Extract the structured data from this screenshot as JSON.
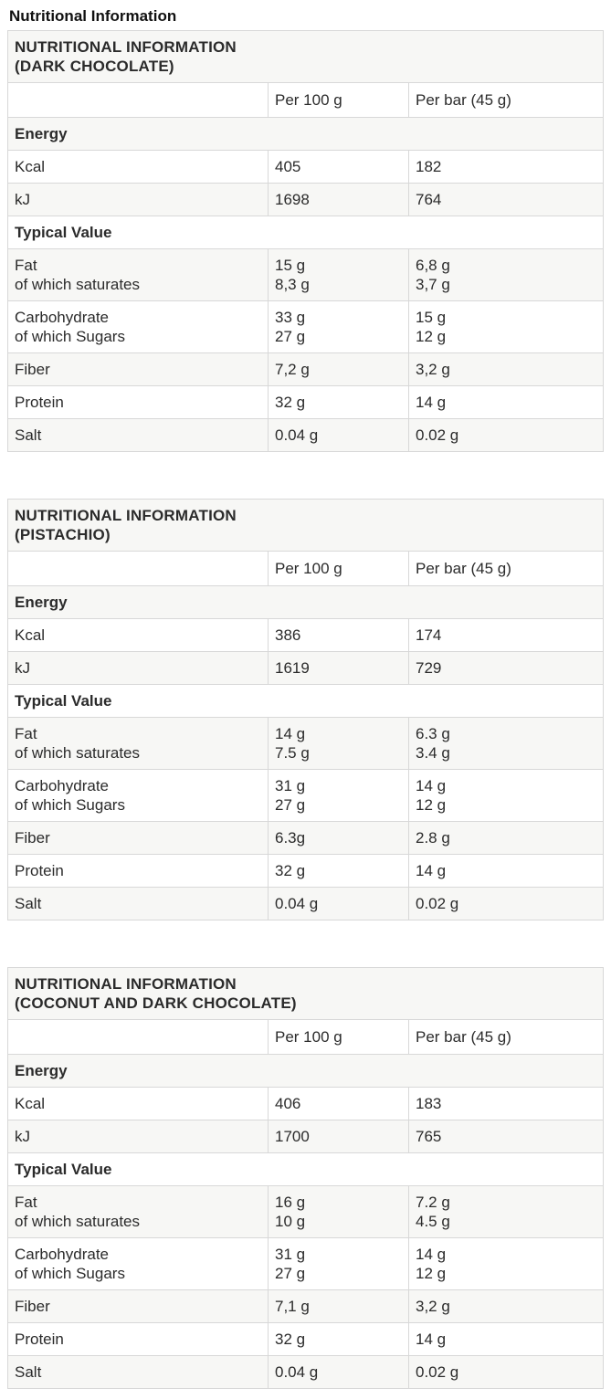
{
  "page_title": "Nutritional Information",
  "tables": [
    {
      "title_lines": [
        "NUTRITIONAL INFORMATION",
        "(DARK CHOCOLATE)"
      ],
      "columns": {
        "per_100g": "Per 100 g",
        "per_bar": "Per bar (45 g)"
      },
      "rows": [
        {
          "type": "section",
          "label": "Energy"
        },
        {
          "type": "data",
          "label": "Kcal",
          "per_100g": "405",
          "per_bar": "182"
        },
        {
          "type": "data",
          "label": "kJ",
          "per_100g": "1698",
          "per_bar": "764"
        },
        {
          "type": "section",
          "label": "Typical Value"
        },
        {
          "type": "data",
          "label": [
            "Fat",
            "of which saturates"
          ],
          "per_100g": [
            "15 g",
            "8,3 g"
          ],
          "per_bar": [
            "6,8 g",
            "3,7 g"
          ]
        },
        {
          "type": "data",
          "label": [
            "Carbohydrate",
            "of which Sugars"
          ],
          "per_100g": [
            "33 g",
            "27 g"
          ],
          "per_bar": [
            "15 g",
            "12 g"
          ]
        },
        {
          "type": "data",
          "label": "Fiber",
          "per_100g": "7,2 g",
          "per_bar": "3,2 g"
        },
        {
          "type": "data",
          "label": "Protein",
          "per_100g": "32 g",
          "per_bar": "14 g"
        },
        {
          "type": "data",
          "label": "Salt",
          "per_100g": "0.04 g",
          "per_bar": "0.02 g"
        }
      ]
    },
    {
      "title_lines": [
        "NUTRITIONAL INFORMATION",
        "(PISTACHIO)"
      ],
      "columns": {
        "per_100g": "Per 100 g",
        "per_bar": "Per bar (45 g)"
      },
      "rows": [
        {
          "type": "section",
          "label": "Energy"
        },
        {
          "type": "data",
          "label": "Kcal",
          "per_100g": "386",
          "per_bar": "174"
        },
        {
          "type": "data",
          "label": "kJ",
          "per_100g": "1619",
          "per_bar": "729"
        },
        {
          "type": "section",
          "label": "Typical Value"
        },
        {
          "type": "data",
          "label": [
            "Fat",
            "of which saturates"
          ],
          "per_100g": [
            "14 g",
            "7.5 g"
          ],
          "per_bar": [
            "6.3 g",
            "3.4 g"
          ]
        },
        {
          "type": "data",
          "label": [
            "Carbohydrate",
            "of which Sugars"
          ],
          "per_100g": [
            "31 g",
            "27 g"
          ],
          "per_bar": [
            "14 g",
            "12 g"
          ]
        },
        {
          "type": "data",
          "label": "Fiber",
          "per_100g": "6.3g",
          "per_bar": "2.8 g"
        },
        {
          "type": "data",
          "label": "Protein",
          "per_100g": "32 g",
          "per_bar": "14 g"
        },
        {
          "type": "data",
          "label": "Salt",
          "per_100g": "0.04 g",
          "per_bar": "0.02 g"
        }
      ]
    },
    {
      "title_lines": [
        "NUTRITIONAL INFORMATION",
        "(COCONUT AND DARK CHOCOLATE)"
      ],
      "columns": {
        "per_100g": "Per 100 g",
        "per_bar": "Per bar (45 g)"
      },
      "rows": [
        {
          "type": "section",
          "label": "Energy"
        },
        {
          "type": "data",
          "label": "Kcal",
          "per_100g": "406",
          "per_bar": "183"
        },
        {
          "type": "data",
          "label": "kJ",
          "per_100g": "1700",
          "per_bar": "765"
        },
        {
          "type": "section",
          "label": "Typical Value"
        },
        {
          "type": "data",
          "label": [
            "Fat",
            "of which saturates"
          ],
          "per_100g": [
            "16 g",
            "10 g"
          ],
          "per_bar": [
            "7.2 g",
            "4.5 g"
          ]
        },
        {
          "type": "data",
          "label": [
            "Carbohydrate",
            "of which Sugars"
          ],
          "per_100g": [
            "31 g",
            "27 g"
          ],
          "per_bar": [
            "14 g",
            "12 g"
          ]
        },
        {
          "type": "data",
          "label": "Fiber",
          "per_100g": "7,1 g",
          "per_bar": "3,2 g"
        },
        {
          "type": "data",
          "label": "Protein",
          "per_100g": "32 g",
          "per_bar": "14 g"
        },
        {
          "type": "data",
          "label": "Salt",
          "per_100g": "0.04 g",
          "per_bar": "0.02 g"
        }
      ]
    }
  ],
  "colors": {
    "stripe_bg": "#f7f7f5",
    "border": "#d8d8d8",
    "text": "#2b2b2b",
    "heading_text": "#111111"
  }
}
